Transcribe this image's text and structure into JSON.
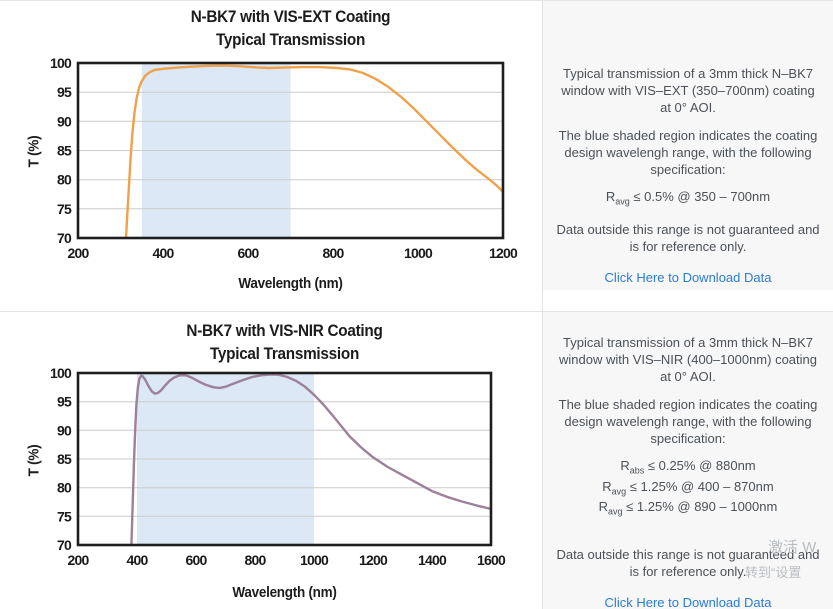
{
  "chart_data": [
    {
      "type": "line",
      "title_line1": "N-BK7 with VIS-EXT Coating",
      "title_line2": "Typical Transmission",
      "xlabel": "Wavelength (nm)",
      "ylabel": "T (%)",
      "xlim": [
        200,
        1200
      ],
      "ylim": [
        70,
        100
      ],
      "xticks": [
        200,
        400,
        600,
        800,
        1000,
        1200
      ],
      "yticks": [
        70,
        75,
        80,
        85,
        90,
        95,
        100
      ],
      "grid": "horizontal",
      "shaded_region_nm": [
        350,
        700
      ],
      "shade_color": "#dce8f5",
      "line_color": "#f0a14c",
      "series": [
        {
          "name": "Typical Transmission",
          "points": [
            [
              313,
              70
            ],
            [
              316,
              74
            ],
            [
              320,
              79
            ],
            [
              324,
              84
            ],
            [
              328,
              88
            ],
            [
              333,
              91.5
            ],
            [
              338,
              94
            ],
            [
              344,
              95.8
            ],
            [
              350,
              96.9
            ],
            [
              358,
              97.8
            ],
            [
              368,
              98.4
            ],
            [
              380,
              98.8
            ],
            [
              400,
              99.0
            ],
            [
              430,
              99.2
            ],
            [
              460,
              99.35
            ],
            [
              500,
              99.5
            ],
            [
              540,
              99.55
            ],
            [
              580,
              99.45
            ],
            [
              620,
              99.25
            ],
            [
              650,
              99.15
            ],
            [
              690,
              99.25
            ],
            [
              730,
              99.3
            ],
            [
              770,
              99.3
            ],
            [
              810,
              99.15
            ],
            [
              840,
              98.9
            ],
            [
              870,
              98.3
            ],
            [
              900,
              97.3
            ],
            [
              930,
              95.9
            ],
            [
              960,
              94.2
            ],
            [
              990,
              92.2
            ],
            [
              1020,
              90.0
            ],
            [
              1050,
              87.8
            ],
            [
              1080,
              85.6
            ],
            [
              1110,
              83.5
            ],
            [
              1140,
              81.6
            ],
            [
              1170,
              79.9
            ],
            [
              1185,
              79.0
            ],
            [
              1200,
              77.9
            ]
          ]
        }
      ]
    },
    {
      "type": "line",
      "title_line1": "N-BK7 with VIS-NIR Coating",
      "title_line2": "Typical Transmission",
      "xlabel": "Wavelength (nm)",
      "ylabel": "T (%)",
      "xlim": [
        200,
        1600
      ],
      "ylim": [
        70,
        100
      ],
      "xticks": [
        200,
        400,
        600,
        800,
        1000,
        1200,
        1400,
        1600
      ],
      "yticks": [
        70,
        75,
        80,
        85,
        90,
        95,
        100
      ],
      "grid": "horizontal",
      "shaded_region_nm": [
        400,
        1000
      ],
      "shade_color": "#dce8f5",
      "line_color": "#9c8198",
      "series": [
        {
          "name": "Typical Transmission",
          "points": [
            [
              381,
              70
            ],
            [
              384,
              75
            ],
            [
              387,
              80
            ],
            [
              390,
              85
            ],
            [
              394,
              90
            ],
            [
              398,
              94.5
            ],
            [
              403,
              97.5
            ],
            [
              408,
              99.0
            ],
            [
              414,
              99.5
            ],
            [
              420,
              99.4
            ],
            [
              428,
              98.8
            ],
            [
              438,
              97.8
            ],
            [
              450,
              96.8
            ],
            [
              460,
              96.4
            ],
            [
              470,
              96.5
            ],
            [
              482,
              97.0
            ],
            [
              495,
              97.8
            ],
            [
              510,
              98.6
            ],
            [
              525,
              99.2
            ],
            [
              545,
              99.6
            ],
            [
              565,
              99.6
            ],
            [
              585,
              99.2
            ],
            [
              610,
              98.5
            ],
            [
              635,
              97.9
            ],
            [
              660,
              97.5
            ],
            [
              680,
              97.4
            ],
            [
              700,
              97.6
            ],
            [
              725,
              98.1
            ],
            [
              755,
              98.7
            ],
            [
              790,
              99.3
            ],
            [
              820,
              99.6
            ],
            [
              850,
              99.75
            ],
            [
              880,
              99.7
            ],
            [
              910,
              99.3
            ],
            [
              940,
              98.6
            ],
            [
              970,
              97.6
            ],
            [
              1000,
              96.2
            ],
            [
              1030,
              94.6
            ],
            [
              1060,
              92.8
            ],
            [
              1090,
              90.9
            ],
            [
              1120,
              89.0
            ],
            [
              1160,
              87.0
            ],
            [
              1200,
              85.3
            ],
            [
              1250,
              83.6
            ],
            [
              1300,
              82.2
            ],
            [
              1350,
              80.8
            ],
            [
              1400,
              79.4
            ],
            [
              1450,
              78.4
            ],
            [
              1500,
              77.6
            ],
            [
              1550,
              76.9
            ],
            [
              1600,
              76.3
            ]
          ]
        }
      ]
    }
  ],
  "sections": [
    {
      "panel": {
        "p1": "Typical transmission of a 3mm thick N–BK7 window with VIS–EXT (350–700nm) coating at 0° AOI.",
        "p2": "The blue shaded region indicates the coating design wavelengh range, with the following specification:",
        "specs": [
          {
            "base": "R",
            "sub": "avg",
            "rest": " ≤ 0.5% @ 350 – 700nm"
          }
        ],
        "p3": "Data outside this range is not guaranteed and is for reference only.",
        "link_label": "Click Here to Download Data"
      }
    },
    {
      "panel": {
        "p1": "Typical transmission of a 3mm thick N–BK7 window with VIS–NIR (400–1000nm) coating at 0° AOI.",
        "p2": "The blue shaded region indicates the coating design wavelengh range, with the following specification:",
        "specs": [
          {
            "base": "R",
            "sub": "abs",
            "rest": " ≤ 0.25% @ 880nm"
          },
          {
            "base": "R",
            "sub": "avg",
            "rest": " ≤ 1.25% @ 400 – 870nm"
          },
          {
            "base": "R",
            "sub": "avg",
            "rest": " ≤ 1.25% @ 890 – 1000nm"
          }
        ],
        "p3": "Data outside this range is not guaranteed and is for reference only.",
        "link_label": "Click Here to Download Data"
      }
    }
  ],
  "watermark": {
    "line1": "激活 W",
    "line2": "转到“设置"
  },
  "colors": {
    "panel_bg": "#f7f7f8",
    "divider": "#e4e4e4",
    "link": "#2b7cd3",
    "shade_blue": "#dce8f5",
    "curve_orange": "#f0a14c",
    "curve_purple": "#9c8198"
  }
}
